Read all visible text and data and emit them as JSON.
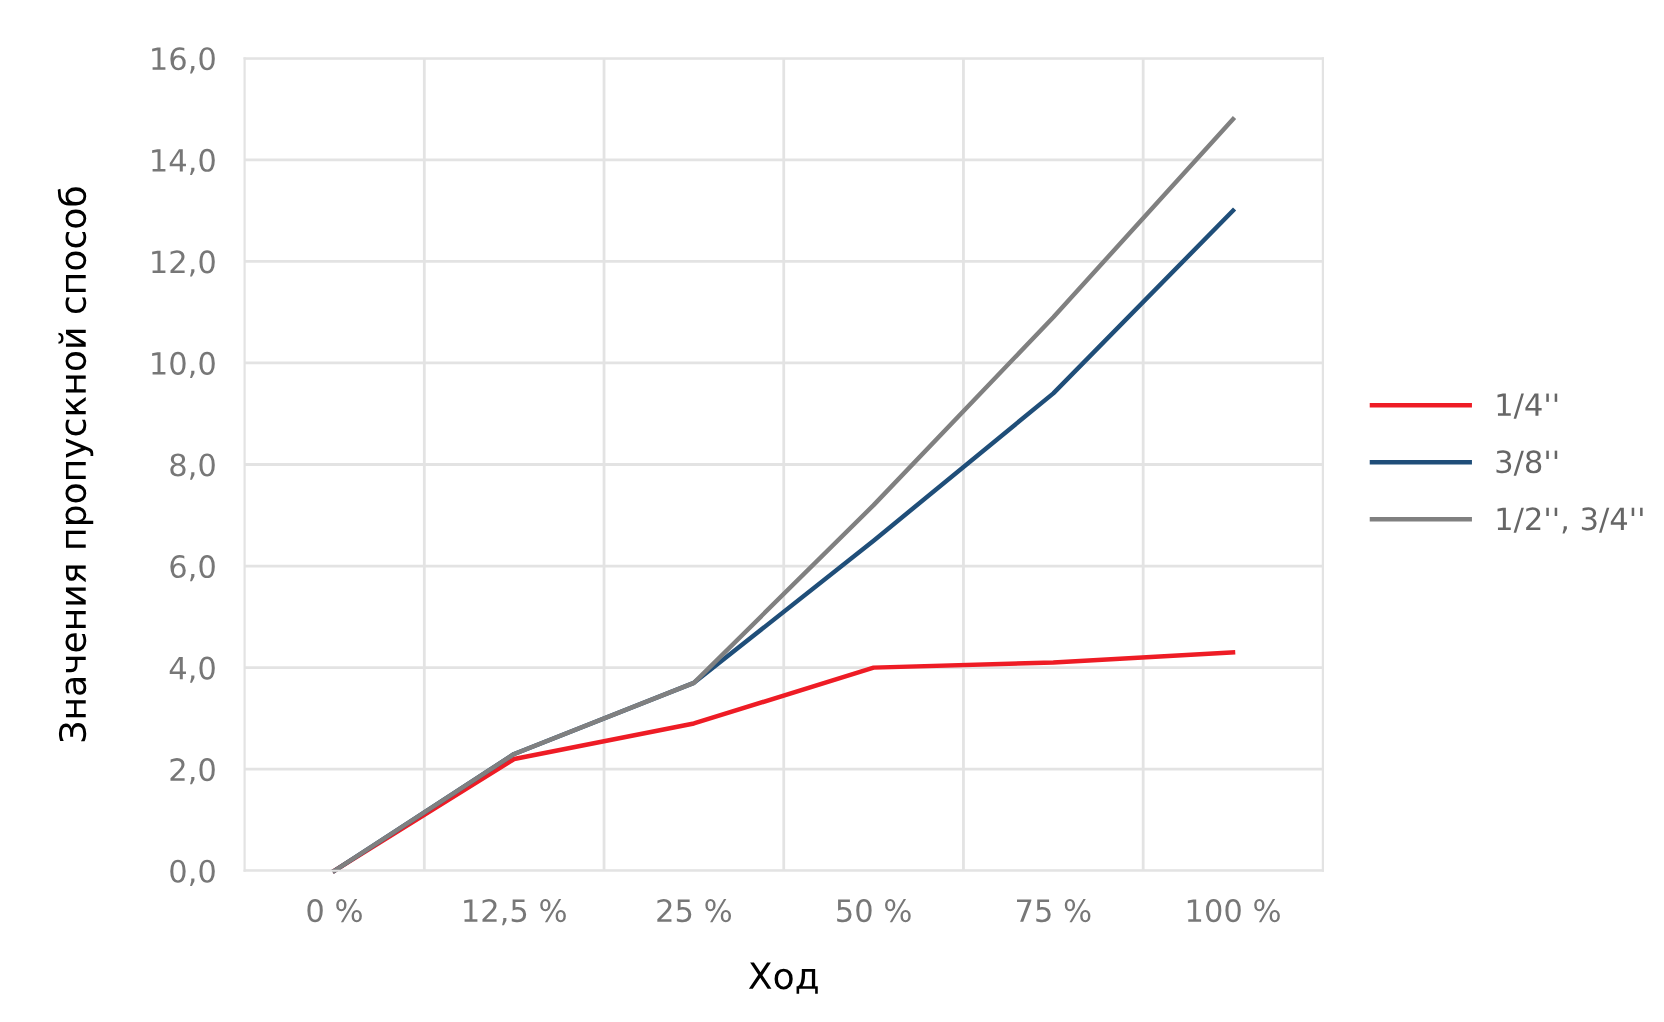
{
  "chart_data": {
    "type": "line",
    "xlabel": "Ход",
    "ylabel": "Значения пропускной способ",
    "categories": [
      "0 %",
      "12,5 %",
      "25 %",
      "50 %",
      "75 %",
      "100 %"
    ],
    "series": [
      {
        "name": "1/4''",
        "color": "#ee1c25",
        "values": [
          0,
          2.2,
          2.9,
          4.0,
          4.1,
          4.3
        ]
      },
      {
        "name": "3/8''",
        "color": "#1f4e79",
        "values": [
          0,
          2.3,
          3.7,
          6.5,
          9.4,
          13.0
        ]
      },
      {
        "name": "1/2'', 3/4''",
        "color": "#808080",
        "values": [
          0,
          2.3,
          3.7,
          7.2,
          10.9,
          14.8
        ]
      }
    ],
    "ylim": [
      0,
      16
    ],
    "yticks": [
      {
        "value": 0,
        "label": "0,0"
      },
      {
        "value": 2,
        "label": "2,0"
      },
      {
        "value": 4,
        "label": "4,0"
      },
      {
        "value": 6,
        "label": "6,0"
      },
      {
        "value": 8,
        "label": "8,0"
      },
      {
        "value": 10,
        "label": "10,0"
      },
      {
        "value": 12,
        "label": "12,0"
      },
      {
        "value": 14,
        "label": "14,0"
      },
      {
        "value": 16,
        "label": "16,0"
      }
    ],
    "grid": true,
    "legend": "right",
    "marker": "none",
    "line_style": "solid"
  }
}
